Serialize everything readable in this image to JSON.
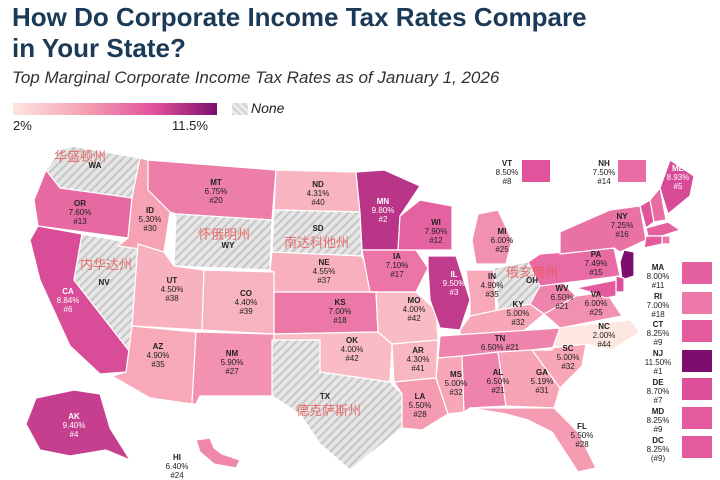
{
  "title": "How Do Corporate Income Tax Rates Compare in Your State?",
  "subtitle": "Top Marginal Corporate Income Tax Rates as of January 1, 2026",
  "legend": {
    "min": "2%",
    "max": "11.5%",
    "none_label": "None"
  },
  "colors": {
    "title": "#1b3a57",
    "none_fill": "#dcdcdc",
    "scale_low": "#fde6df",
    "scale_high": "#7d0e6e"
  },
  "watermarks": [
    "华盛顿州",
    "怀俄明州",
    "南达科他州",
    "内华达州",
    "俄亥俄州",
    "德克萨斯州"
  ],
  "states": {
    "WA": {
      "abbr": "WA",
      "rate": "",
      "rank": ""
    },
    "OR": {
      "abbr": "OR",
      "rate": "7.60%",
      "rank": "#13"
    },
    "CA": {
      "abbr": "CA",
      "rate": "8.84%",
      "rank": "#6"
    },
    "NV": {
      "abbr": "NV",
      "rate": "",
      "rank": ""
    },
    "ID": {
      "abbr": "ID",
      "rate": "5.30%",
      "rank": "#30"
    },
    "MT": {
      "abbr": "MT",
      "rate": "6.75%",
      "rank": "#20"
    },
    "WY": {
      "abbr": "WY",
      "rate": "",
      "rank": ""
    },
    "UT": {
      "abbr": "UT",
      "rate": "4.50%",
      "rank": "#38"
    },
    "AZ": {
      "abbr": "AZ",
      "rate": "4.90%",
      "rank": "#35"
    },
    "CO": {
      "abbr": "CO",
      "rate": "4.40%",
      "rank": "#39"
    },
    "NM": {
      "abbr": "NM",
      "rate": "5.90%",
      "rank": "#27"
    },
    "ND": {
      "abbr": "ND",
      "rate": "4.31%",
      "rank": "#40"
    },
    "SD": {
      "abbr": "SD",
      "rate": "",
      "rank": ""
    },
    "NE": {
      "abbr": "NE",
      "rate": "4.55%",
      "rank": "#37"
    },
    "KS": {
      "abbr": "KS",
      "rate": "7.00%",
      "rank": "#18"
    },
    "OK": {
      "abbr": "OK",
      "rate": "4.00%",
      "rank": "#42"
    },
    "TX": {
      "abbr": "TX",
      "rate": "",
      "rank": ""
    },
    "MN": {
      "abbr": "MN",
      "rate": "9.80%",
      "rank": "#2"
    },
    "IA": {
      "abbr": "IA",
      "rate": "7.10%",
      "rank": "#17"
    },
    "MO": {
      "abbr": "MO",
      "rate": "4.00%",
      "rank": "#42"
    },
    "AR": {
      "abbr": "AR",
      "rate": "4.30%",
      "rank": "#41"
    },
    "LA": {
      "abbr": "LA",
      "rate": "5.50%",
      "rank": "#28"
    },
    "WI": {
      "abbr": "WI",
      "rate": "7.90%",
      "rank": "#12"
    },
    "IL": {
      "abbr": "IL",
      "rate": "9.50%",
      "rank": "#3"
    },
    "MI": {
      "abbr": "MI",
      "rate": "6.00%",
      "rank": "#25"
    },
    "IN": {
      "abbr": "IN",
      "rate": "4.90%",
      "rank": "#35"
    },
    "OH": {
      "abbr": "OH",
      "rate": "",
      "rank": ""
    },
    "KY": {
      "abbr": "KY",
      "rate": "5.00%",
      "rank": "#32"
    },
    "TN": {
      "abbr": "TN",
      "rate": "6.50%",
      "rank": "#21"
    },
    "MS": {
      "abbr": "MS",
      "rate": "5.00%",
      "rank": "#32"
    },
    "AL": {
      "abbr": "AL",
      "rate": "6.50%",
      "rank": "#21"
    },
    "GA": {
      "abbr": "GA",
      "rate": "5.19%",
      "rank": "#31"
    },
    "FL": {
      "abbr": "FL",
      "rate": "5.50%",
      "rank": "#28"
    },
    "SC": {
      "abbr": "SC",
      "rate": "5.00%",
      "rank": "#32"
    },
    "NC": {
      "abbr": "NC",
      "rate": "2.00%",
      "rank": "#44"
    },
    "VA": {
      "abbr": "VA",
      "rate": "6.00%",
      "rank": "#25"
    },
    "WV": {
      "abbr": "WV",
      "rate": "6.50%",
      "rank": "#21"
    },
    "PA": {
      "abbr": "PA",
      "rate": "7.49%",
      "rank": "#15"
    },
    "NY": {
      "abbr": "NY",
      "rate": "7.25%",
      "rank": "#16"
    },
    "VT": {
      "abbr": "VT",
      "rate": "8.50%",
      "rank": "#8"
    },
    "NH": {
      "abbr": "NH",
      "rate": "7.50%",
      "rank": "#14"
    },
    "ME": {
      "abbr": "ME",
      "rate": "8.93%",
      "rank": "#5"
    },
    "MA": {
      "abbr": "MA",
      "rate": "8.00%",
      "rank": "#11"
    },
    "RI": {
      "abbr": "RI",
      "rate": "7.00%",
      "rank": "#18"
    },
    "CT": {
      "abbr": "CT",
      "rate": "8.25%",
      "rank": "#9"
    },
    "NJ": {
      "abbr": "NJ",
      "rate": "11.50%",
      "rank": "#1"
    },
    "DE": {
      "abbr": "DE",
      "rate": "8.70%",
      "rank": "#7"
    },
    "MD": {
      "abbr": "MD",
      "rate": "8.25%",
      "rank": "#9"
    },
    "DC": {
      "abbr": "DC",
      "rate": "8.25%",
      "rank": "(#9)"
    },
    "AK": {
      "abbr": "AK",
      "rate": "9.40%",
      "rank": "#4"
    },
    "HI": {
      "abbr": "HI",
      "rate": "6.40%",
      "rank": "#24"
    }
  }
}
